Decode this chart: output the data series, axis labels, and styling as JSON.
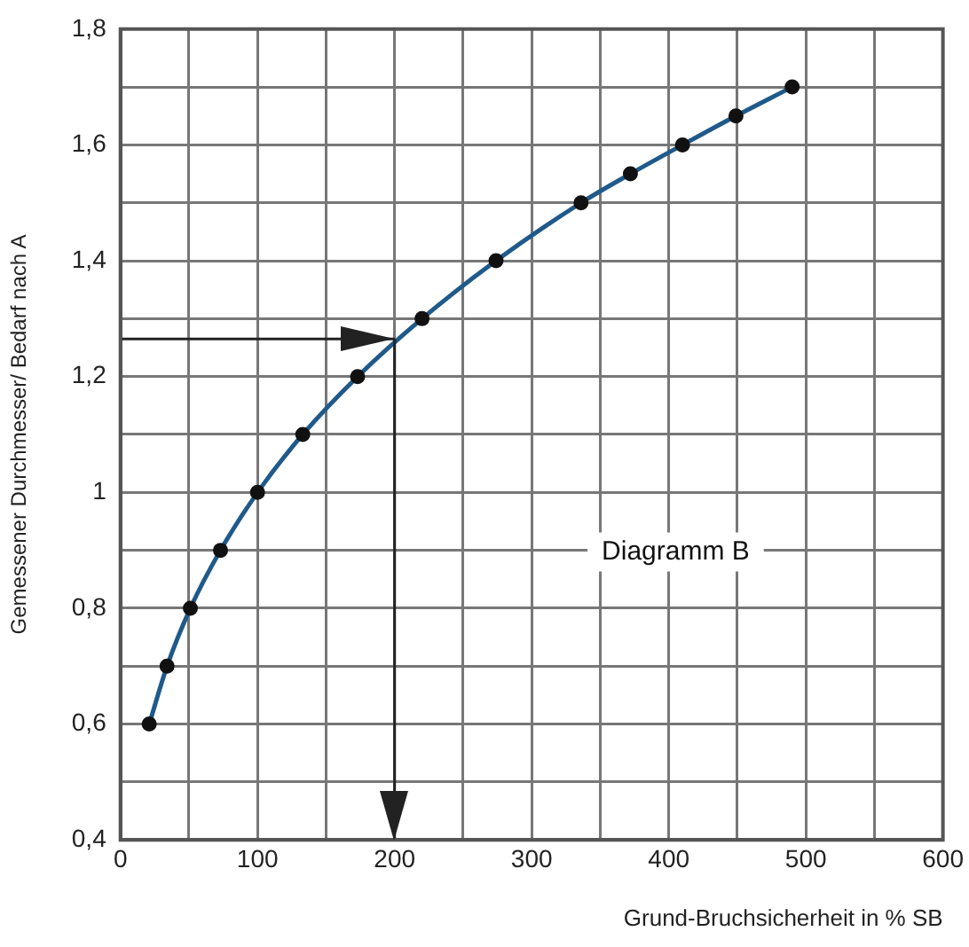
{
  "chart_data": {
    "type": "line",
    "xlabel": "Grund-Bruchsicherheit in % SB",
    "ylabel": "Gemessener Durchmesser/ Bedarf nach A",
    "x": [
      21,
      34,
      51,
      73,
      100,
      133,
      173,
      220,
      274,
      336,
      372,
      410,
      449,
      490
    ],
    "series": [
      {
        "color": "#1f5a8a",
        "values": [
          0.6,
          0.7,
          0.8,
          0.9,
          1.0,
          1.1,
          1.2,
          1.3,
          1.4,
          1.5,
          1.55,
          1.6,
          1.65,
          1.7
        ]
      }
    ],
    "xlim": [
      0,
      600
    ],
    "xticks": [
      0,
      {
        "value": 50,
        "label": null
      },
      100,
      {
        "value": 150,
        "label": null
      },
      200,
      {
        "value": 250,
        "label": null
      },
      300,
      {
        "value": 350,
        "label": null
      },
      400,
      {
        "value": 450,
        "label": null
      },
      500,
      {
        "value": 550,
        "label": null
      },
      600
    ],
    "ylim": [
      0.4,
      1.8
    ],
    "yticks": [
      {
        "value": 0.4,
        "label": "0,4"
      },
      {
        "value": 0.5,
        "label": null
      },
      {
        "value": 0.6,
        "label": "0,6"
      },
      {
        "value": 0.7,
        "label": null
      },
      {
        "value": 0.8,
        "label": "0,8"
      },
      {
        "value": 0.9,
        "label": null
      },
      1,
      {
        "value": 1.1,
        "label": null
      },
      {
        "value": 1.2,
        "label": "1,2"
      },
      {
        "value": 1.3,
        "label": null
      },
      {
        "value": 1.4,
        "label": "1,4"
      },
      {
        "value": 1.5,
        "label": null
      },
      {
        "value": 1.6,
        "label": "1,6"
      },
      {
        "value": 1.7,
        "label": null
      },
      {
        "value": 1.8,
        "label": "1,8"
      }
    ],
    "ref_lines": [
      {
        "axis": "y",
        "value": 1.265,
        "color": "#222222"
      },
      {
        "axis": "x",
        "value": 200,
        "color": "#222222"
      }
    ],
    "annotations": [
      "Diagramm B"
    ],
    "grid": true,
    "marker": "circle",
    "line_style": "solid",
    "legend": false
  }
}
